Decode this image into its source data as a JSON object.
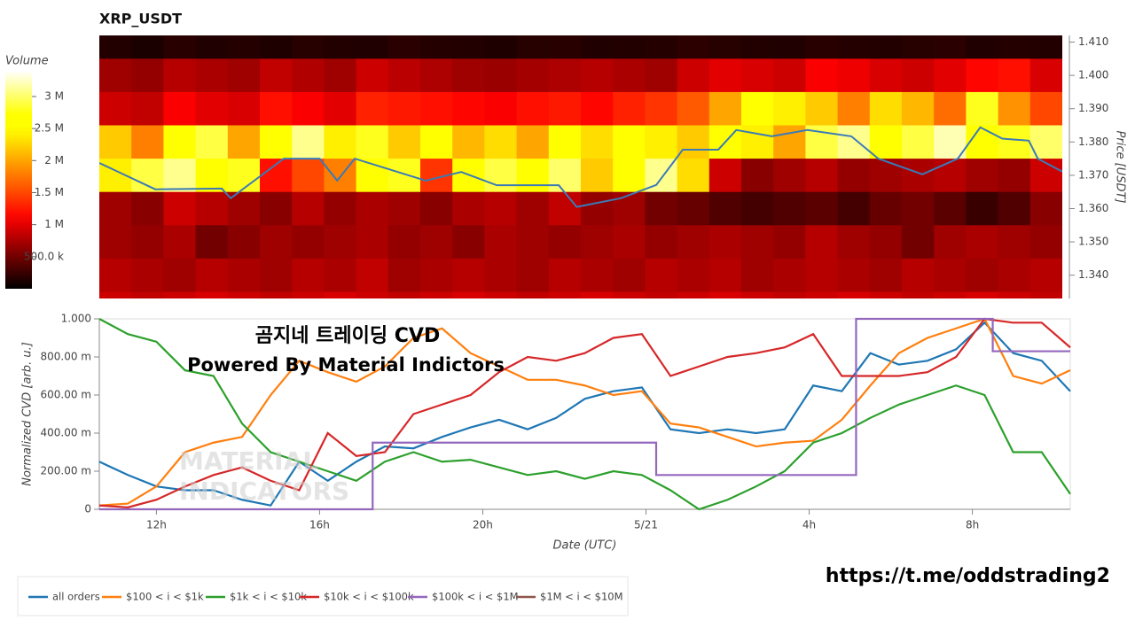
{
  "chart_data": [
    {
      "type": "heatmap",
      "title": "XRP_USDT",
      "y_label": "Price [USDT]",
      "colorbar_title": "Volume",
      "xlim": [
        10.6,
        34.2
      ],
      "ylim": [
        1.333,
        1.412
      ],
      "yticks": [
        {
          "value": 1.41,
          "label": "1.410"
        },
        {
          "value": 1.4,
          "label": "1.400"
        },
        {
          "value": 1.39,
          "label": "1.390"
        },
        {
          "value": 1.38,
          "label": "1.380"
        },
        {
          "value": 1.37,
          "label": "1.370"
        },
        {
          "value": 1.36,
          "label": "1.360"
        },
        {
          "value": 1.35,
          "label": "1.350"
        },
        {
          "value": 1.34,
          "label": "1.340"
        }
      ],
      "y": [
        1.41,
        1.4,
        1.39,
        1.38,
        1.37,
        1.36,
        1.35,
        1.34,
        1.33
      ],
      "clim": [
        0,
        3400000
      ],
      "cticks": [
        {
          "value": 500000,
          "label": "500.0 k"
        },
        {
          "value": 1000000,
          "label": "1 M"
        },
        {
          "value": 1500000,
          "label": "1.5 M"
        },
        {
          "value": 2000000,
          "label": "2 M"
        },
        {
          "value": 2500000,
          "label": "2.5 M"
        },
        {
          "value": 3000000,
          "label": "3 M"
        }
      ],
      "z": [
        [
          150000,
          120000,
          180000,
          140000,
          160000,
          130000,
          170000,
          150000,
          140000,
          190000,
          160000,
          150000,
          130000,
          170000,
          180000,
          140000,
          150000,
          160000,
          200000,
          170000,
          150000,
          140000,
          180000,
          160000,
          150000,
          170000,
          190000,
          140000,
          160000,
          150000
        ],
        [
          700000,
          650000,
          800000,
          750000,
          700000,
          850000,
          780000,
          700000,
          900000,
          820000,
          760000,
          700000,
          680000,
          720000,
          760000,
          800000,
          750000,
          700000,
          900000,
          1000000,
          950000,
          900000,
          1100000,
          1050000,
          950000,
          900000,
          1000000,
          1150000,
          1200000,
          950000
        ],
        [
          900000,
          850000,
          1100000,
          1000000,
          950000,
          1200000,
          1100000,
          1000000,
          1300000,
          1250000,
          1200000,
          1150000,
          1100000,
          1200000,
          1250000,
          1150000,
          1300000,
          1400000,
          1600000,
          2000000,
          2600000,
          2400000,
          2200000,
          1800000,
          2300000,
          2100000,
          1700000,
          2800000,
          1900000,
          1500000
        ],
        [
          2200000,
          1800000,
          2500000,
          2900000,
          2000000,
          2600000,
          3100000,
          2400000,
          2800000,
          2200000,
          2600000,
          2100000,
          2300000,
          2000000,
          2500000,
          2300000,
          2600000,
          2400000,
          2200000,
          2700000,
          2400000,
          2000000,
          2900000,
          3100000,
          2600000,
          2900000,
          3200000,
          2500000,
          2800000,
          3000000
        ],
        [
          2400000,
          2900000,
          3100000,
          2600000,
          2800000,
          1200000,
          1500000,
          1800000,
          2600000,
          2800000,
          1400000,
          2700000,
          2900000,
          2500000,
          3000000,
          2200000,
          2700000,
          3100000,
          2300000,
          900000,
          600000,
          700000,
          800000,
          650000,
          700000,
          750000,
          800000,
          700000,
          650000,
          900000
        ],
        [
          700000,
          600000,
          900000,
          800000,
          700000,
          600000,
          800000,
          650000,
          750000,
          700000,
          600000,
          750000,
          800000,
          700000,
          850000,
          650000,
          700000,
          500000,
          450000,
          350000,
          300000,
          350000,
          400000,
          300000,
          450000,
          500000,
          400000,
          250000,
          350000,
          600000
        ],
        [
          700000,
          650000,
          750000,
          500000,
          600000,
          700000,
          650000,
          700000,
          750000,
          650000,
          700000,
          600000,
          750000,
          700000,
          650000,
          700000,
          750000,
          650000,
          700000,
          750000,
          700000,
          650000,
          800000,
          700000,
          650000,
          500000,
          700000,
          750000,
          700000,
          650000
        ],
        [
          800000,
          750000,
          700000,
          800000,
          750000,
          700000,
          800000,
          750000,
          850000,
          700000,
          750000,
          800000,
          750000,
          700000,
          800000,
          750000,
          700000,
          800000,
          750000,
          800000,
          700000,
          750000,
          800000,
          750000,
          700000,
          800000,
          750000,
          700000,
          750000,
          800000
        ],
        [
          900000,
          850000,
          900000,
          950000,
          900000,
          850000,
          900000,
          950000,
          900000,
          850000,
          900000,
          950000,
          900000,
          850000,
          900000,
          950000,
          900000,
          850000,
          900000,
          950000,
          900000,
          850000,
          900000,
          950000,
          900000,
          850000,
          900000,
          950000,
          900000,
          850000
        ]
      ],
      "price": {
        "color": "#3a7ab8",
        "x": [
          10.6,
          11.97,
          13.6,
          13.82,
          15.12,
          16.0,
          16.43,
          16.86,
          18.6,
          19.47,
          20.34,
          21.86,
          22.3,
          23.38,
          24.25,
          24.9,
          25.77,
          26.21,
          27.08,
          27.95,
          29.03,
          29.69,
          30.77,
          31.64,
          32.19,
          32.73,
          33.38,
          33.6,
          34.2
        ],
        "values": [
          1.3737,
          1.3658,
          1.366,
          1.3631,
          1.375,
          1.375,
          1.3684,
          1.375,
          1.3684,
          1.371,
          1.367,
          1.367,
          1.3605,
          1.3631,
          1.3671,
          1.3777,
          1.3777,
          1.3836,
          1.3817,
          1.3836,
          1.3817,
          1.375,
          1.3703,
          1.375,
          1.3844,
          1.381,
          1.3804,
          1.375,
          1.3711
        ]
      }
    },
    {
      "type": "line",
      "x_label": "Date (UTC)",
      "y_label": "Normalized CVD [arb. u.]",
      "xlim": [
        10.6,
        34.4
      ],
      "xticks": [
        {
          "value": 12,
          "label": "12h"
        },
        {
          "value": 16,
          "label": "16h"
        },
        {
          "value": 20,
          "label": "20h"
        },
        {
          "value": 24,
          "label": "5/21"
        },
        {
          "value": 28,
          "label": "4h"
        },
        {
          "value": 32,
          "label": "8h"
        }
      ],
      "ylim": [
        0,
        1
      ],
      "yticks": [
        0,
        {
          "value": 0.2,
          "label": "200.00 m"
        },
        {
          "value": 0.4,
          "label": "400.00 m"
        },
        {
          "value": 0.6,
          "label": "600.00 m"
        },
        {
          "value": 0.8,
          "label": "800.00 m"
        },
        {
          "value": 1,
          "label": "1.000"
        }
      ],
      "x": [
        10.6,
        11.3,
        12.0,
        12.7,
        13.4,
        14.1,
        14.8,
        15.5,
        16.2,
        16.9,
        17.6,
        18.3,
        19.0,
        19.7,
        20.4,
        21.1,
        21.8,
        22.5,
        23.2,
        23.9,
        24.6,
        25.3,
        26.0,
        26.7,
        27.4,
        28.1,
        28.8,
        29.5,
        30.2,
        30.9,
        31.6,
        32.3,
        33.0,
        33.7,
        34.4
      ],
      "series": [
        {
          "name": "all orders",
          "color": "#1f77b4",
          "values": [
            0.25,
            0.18,
            0.12,
            0.1,
            0.1,
            0.05,
            0.02,
            0.25,
            0.15,
            0.25,
            0.33,
            0.32,
            0.38,
            0.43,
            0.47,
            0.42,
            0.48,
            0.58,
            0.62,
            0.64,
            0.42,
            0.4,
            0.42,
            0.4,
            0.42,
            0.65,
            0.62,
            0.82,
            0.76,
            0.78,
            0.84,
            0.98,
            0.82,
            0.78,
            0.62
          ]
        },
        {
          "name": "$100 < i < $1k",
          "color": "#ff7f0e",
          "values": [
            0.02,
            0.03,
            0.12,
            0.3,
            0.35,
            0.38,
            0.6,
            0.78,
            0.72,
            0.67,
            0.75,
            0.9,
            0.95,
            0.82,
            0.75,
            0.68,
            0.68,
            0.65,
            0.6,
            0.62,
            0.45,
            0.43,
            0.38,
            0.33,
            0.35,
            0.36,
            0.47,
            0.65,
            0.82,
            0.9,
            0.95,
            1.0,
            0.7,
            0.66,
            0.73
          ]
        },
        {
          "name": "$1k < i < $10k",
          "color": "#2ca02c",
          "values": [
            1.0,
            0.92,
            0.88,
            0.73,
            0.7,
            0.45,
            0.3,
            0.25,
            0.2,
            0.15,
            0.25,
            0.3,
            0.25,
            0.26,
            0.22,
            0.18,
            0.2,
            0.16,
            0.2,
            0.18,
            0.1,
            0.0,
            0.05,
            0.12,
            0.2,
            0.35,
            0.4,
            0.48,
            0.55,
            0.6,
            0.65,
            0.6,
            0.3,
            0.3,
            0.08
          ]
        },
        {
          "name": "$10k < i < $100k",
          "color": "#d62728",
          "values": [
            0.02,
            0.01,
            0.05,
            0.12,
            0.18,
            0.22,
            0.15,
            0.1,
            0.4,
            0.28,
            0.3,
            0.5,
            0.55,
            0.6,
            0.72,
            0.8,
            0.78,
            0.82,
            0.9,
            0.92,
            0.7,
            0.75,
            0.8,
            0.82,
            0.85,
            0.92,
            0.7,
            0.7,
            0.7,
            0.72,
            0.8,
            1.0,
            0.98,
            0.98,
            0.85
          ]
        },
        {
          "name": "$100k < i < $1M",
          "color": "#9467bd",
          "x": [
            10.6,
            17.3,
            17.3,
            24.25,
            24.25,
            29.15,
            29.15,
            32.5,
            32.5,
            34.4
          ],
          "values": [
            0,
            0,
            0.35,
            0.35,
            0.18,
            0.18,
            1,
            1,
            0.83,
            0.83
          ]
        },
        {
          "name": "$1M < i < $10M",
          "color": "#8c564b"
        }
      ]
    }
  ],
  "overlay": {
    "headline": "곰지네 트레이딩 CVD",
    "subline": "Powered By Material Indictors",
    "link": "https://t.me/oddstrading2",
    "watermark": [
      "MATERIAL",
      "INDICATORS"
    ]
  }
}
